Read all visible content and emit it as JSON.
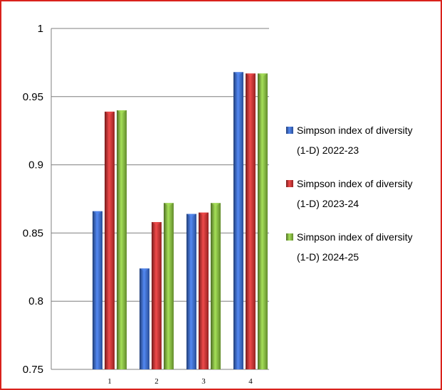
{
  "chart_data": {
    "type": "bar",
    "categories": [
      "1",
      "2",
      "3",
      "4"
    ],
    "series": [
      {
        "name": "Simpson index of diversity (1-D) 2022-23",
        "values": [
          0.866,
          0.824,
          0.864,
          0.968
        ],
        "color": "#3a6fd8"
      },
      {
        "name": "Simpson index of diversity (1-D) 2023-24",
        "values": [
          0.939,
          0.858,
          0.865,
          0.967
        ],
        "color": "#d63131"
      },
      {
        "name": "Simpson index of diversity (1-D) 2024-25",
        "values": [
          0.94,
          0.872,
          0.872,
          0.967
        ],
        "color": "#8cc63f"
      }
    ],
    "legend_lines": [
      [
        "Simpson index of diversity",
        "(1-D) 2022-23"
      ],
      [
        "Simpson index of diversity",
        "(1-D) 2023-24"
      ],
      [
        "Simpson index of diversity",
        "(1-D) 2024-25"
      ]
    ],
    "yticks": [
      "0.75",
      "0.8",
      "0.85",
      "0.9",
      "0.95",
      "1"
    ],
    "ylim": [
      0.75,
      1.0
    ],
    "grid": true,
    "legend_position": "right",
    "title": "",
    "xlabel": "",
    "ylabel": ""
  },
  "frame_color": "#d9221c"
}
